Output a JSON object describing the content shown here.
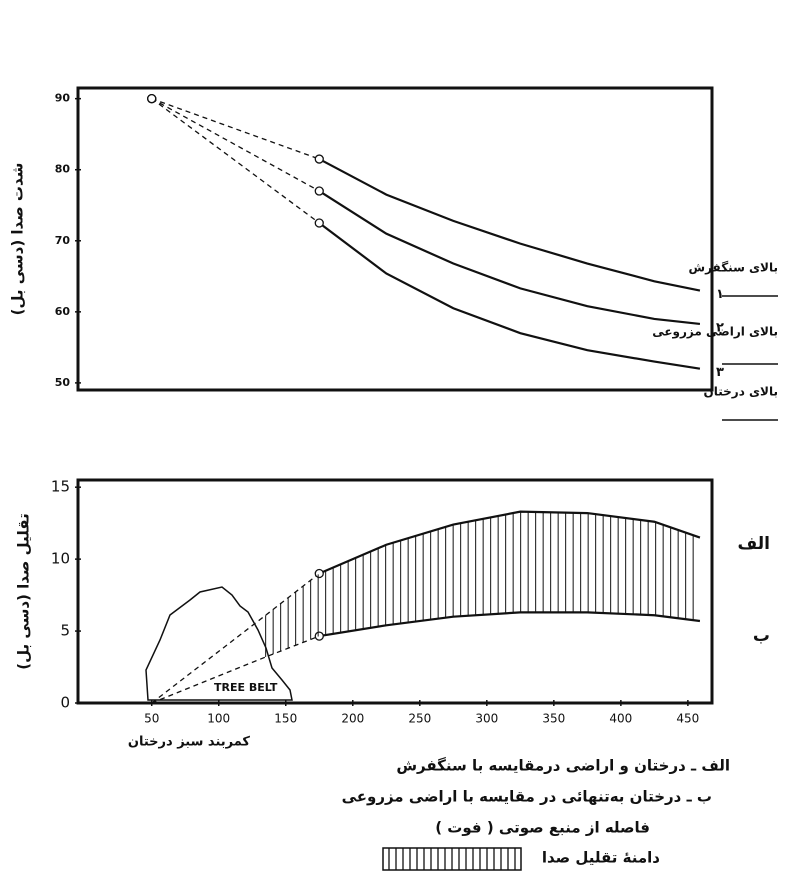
{
  "chart_data": [
    {
      "type": "line",
      "y_label": "شدت صدا (دسی بل)",
      "x": [
        50,
        175,
        225,
        275,
        325,
        375,
        425,
        459
      ],
      "xlim": [
        -5,
        468
      ],
      "ylim": [
        49,
        91.5
      ],
      "yticks": [
        50,
        60,
        70,
        80,
        90
      ],
      "series": [
        {
          "name": "بالای سنگفرش",
          "label": "۱",
          "color": "#111",
          "values": [
            90,
            81.5,
            76.5,
            72.8,
            69.6,
            66.8,
            64.3,
            63
          ]
        },
        {
          "name": "بالای اراضی مزروعی",
          "label": "۲",
          "color": "#111",
          "values": [
            90,
            77,
            71,
            66.8,
            63.3,
            60.8,
            59,
            58.3
          ]
        },
        {
          "name": "بالای درختان",
          "label": "۳",
          "color": "#111",
          "values": [
            90,
            72.5,
            65.4,
            60.5,
            57,
            54.6,
            53,
            52
          ]
        }
      ]
    },
    {
      "type": "band",
      "y_label": "تقلیل صدا (دسی بل)",
      "x_label": "فاصله از منبع صوتی ( فوت )",
      "x": [
        50,
        135,
        175,
        225,
        275,
        325,
        375,
        425,
        459
      ],
      "xlim": [
        -5,
        468
      ],
      "xticks": [
        50,
        100,
        150,
        200,
        250,
        300,
        350,
        400,
        450
      ],
      "ylim": [
        0,
        15.5
      ],
      "yticks": [
        0,
        5,
        10,
        15
      ],
      "series": [
        {
          "name": "الف",
          "color": "#111",
          "values": [
            0,
            6.1,
            9,
            11,
            12.4,
            13.3,
            13.2,
            12.6,
            11.5
          ]
        },
        {
          "name": "ب",
          "color": "#111",
          "values": [
            0,
            3.2,
            4.65,
            5.4,
            6,
            6.3,
            6.3,
            6.1,
            5.7
          ]
        }
      ],
      "tree_label": "TREE BELT",
      "belt_label": "کمربند سبز درختان",
      "notes": [
        "الف ـ درختان و اراضی درمقایسه با سنگفرش",
        "ب ـ درختان به‌تنهائی در مقایسه با اراضی مزروعی"
      ],
      "band_label": "دامنهٔ تقلیل صدا"
    }
  ]
}
